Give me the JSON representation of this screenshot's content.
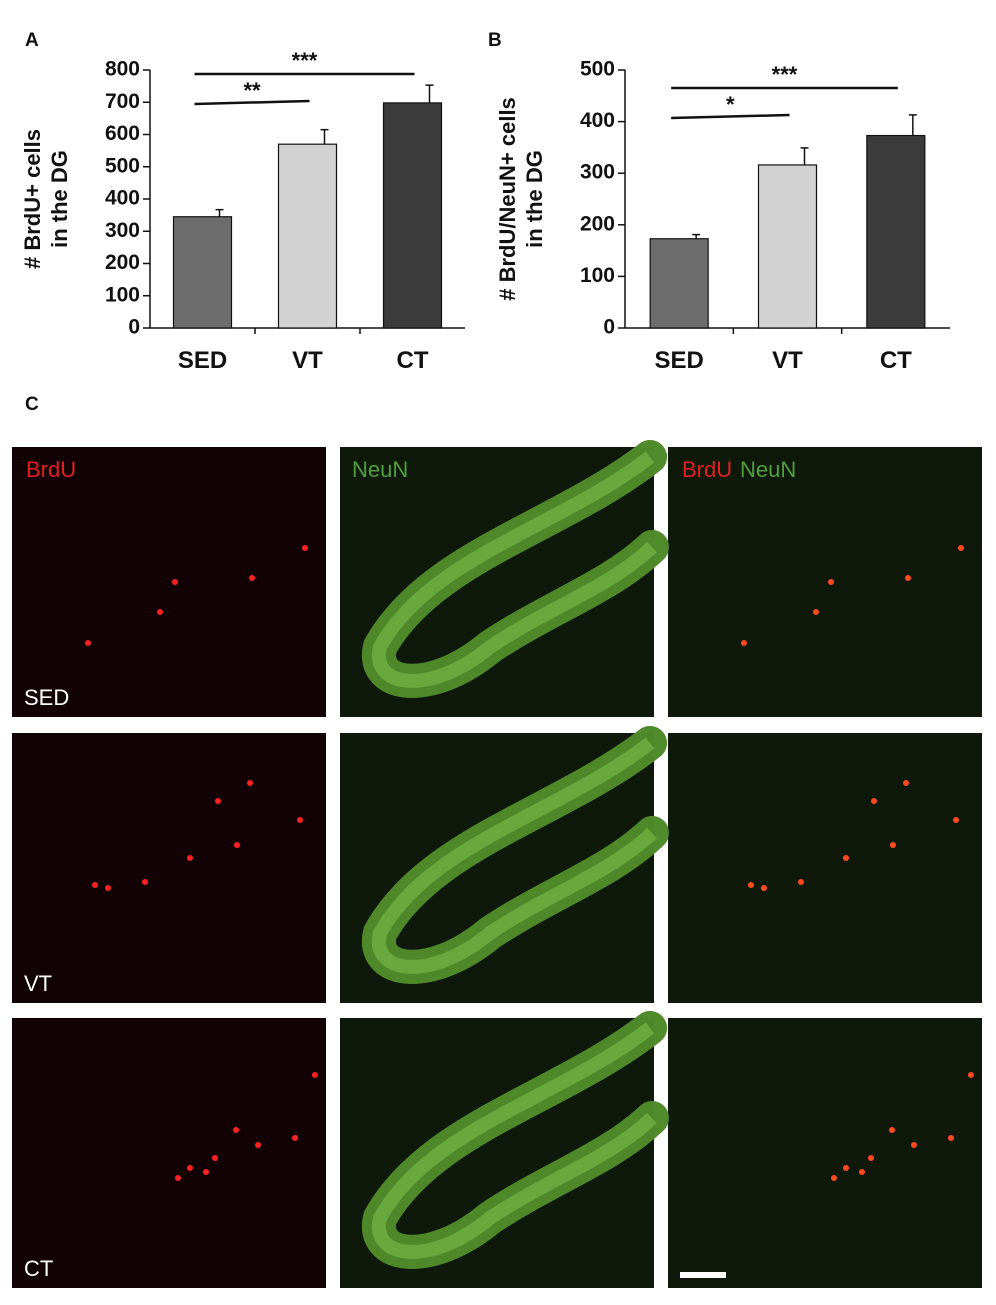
{
  "chart_data": [
    {
      "type": "bar",
      "panel": "A",
      "ylabel": [
        "# BrdU+ cells",
        "in the DG"
      ],
      "categories": [
        "SED",
        "VT",
        "CT"
      ],
      "values": [
        345,
        570,
        698
      ],
      "errors": [
        22,
        45,
        55
      ],
      "colors": [
        "#6d6d6d",
        "#d2d2d2",
        "#3b3b3b"
      ],
      "ylim": [
        0,
        800
      ],
      "yticks": [
        0,
        100,
        200,
        300,
        400,
        500,
        600,
        700,
        800
      ],
      "annotations": [
        "**",
        "***"
      ]
    },
    {
      "type": "bar",
      "panel": "B",
      "ylabel": [
        "# BrdU/NeuN+ cells",
        "in the DG"
      ],
      "categories": [
        "SED",
        "VT",
        "CT"
      ],
      "values": [
        173,
        316,
        373
      ],
      "errors": [
        8,
        33,
        40
      ],
      "colors": [
        "#6d6d6d",
        "#d2d2d2",
        "#3b3b3b"
      ],
      "ylim": [
        0,
        500
      ],
      "yticks": [
        0,
        100,
        200,
        300,
        400,
        500
      ],
      "annotations": [
        "*",
        "***"
      ]
    }
  ],
  "figure_c": {
    "panel": "C",
    "channels": [
      "BrdU",
      "NeuN"
    ],
    "rows": [
      "SED",
      "VT",
      "CT"
    ]
  }
}
